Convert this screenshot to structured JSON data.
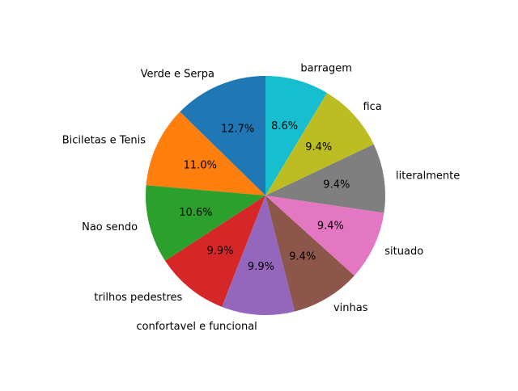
{
  "chart_data": {
    "type": "pie",
    "title": "",
    "start_angle_deg": 90,
    "direction": "counterclockwise",
    "labels": [
      "Verde e Serpa",
      "Biciletas e Tenis",
      "Nao sendo",
      "trilhos pedestres",
      "confortavel e funcional",
      "vinhas",
      "situado",
      "literalmente",
      "fica",
      "barragem"
    ],
    "values": [
      12.7,
      11.0,
      10.6,
      9.9,
      9.9,
      9.4,
      9.4,
      9.4,
      9.4,
      8.6
    ],
    "pct_labels": [
      "12.7%",
      "11.0%",
      "10.6%",
      "9.9%",
      "9.9%",
      "9.4%",
      "9.4%",
      "9.4%",
      "9.4%",
      "8.6%"
    ],
    "colors": [
      "#1f77b4",
      "#ff7f0e",
      "#2ca02c",
      "#d62728",
      "#9467bd",
      "#8c564b",
      "#e377c2",
      "#7f7f7f",
      "#bcbd22",
      "#17becf"
    ],
    "legend": "none"
  }
}
